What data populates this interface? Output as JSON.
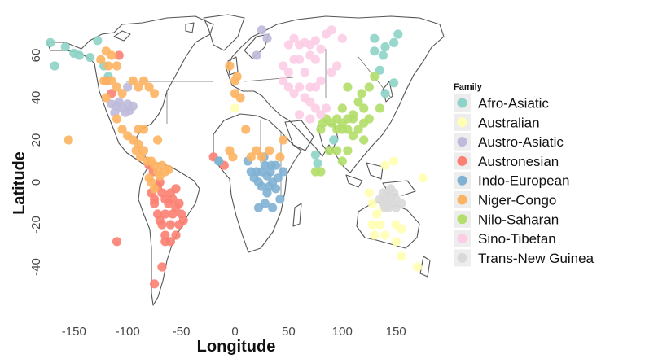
{
  "chart_data": {
    "type": "scatter",
    "title": "",
    "xlabel": "Longitude",
    "ylabel": "Latitude",
    "xlim": [
      -175,
      180
    ],
    "ylim": [
      -60,
      78
    ],
    "xticks": [
      -150,
      -100,
      -50,
      0,
      50,
      100,
      150
    ],
    "xtick_labels": [
      "-150",
      "-100",
      "-50",
      "0",
      "50",
      "100",
      "150"
    ],
    "yticks": [
      -40,
      -20,
      0,
      20,
      40,
      60
    ],
    "ytick_labels": [
      "-40",
      "-20",
      "0",
      "20",
      "40",
      "60"
    ],
    "grid": false,
    "background": "world map outline",
    "legend": {
      "title": "Family",
      "position": "right"
    },
    "series": [
      {
        "name": "Afro-Asiatic",
        "color": "#8dd3c7",
        "points": [
          [
            -172,
            66
          ],
          [
            -168,
            55
          ],
          [
            -158,
            64
          ],
          [
            -150,
            61
          ],
          [
            -145,
            60
          ],
          [
            -135,
            59
          ],
          [
            -128,
            67
          ],
          [
            -122,
            55
          ],
          [
            -118,
            50
          ],
          [
            130,
            68
          ],
          [
            130,
            62
          ],
          [
            135,
            53
          ],
          [
            138,
            60
          ],
          [
            140,
            64
          ],
          [
            148,
            66
          ],
          [
            152,
            70
          ],
          [
            148,
            47
          ],
          [
            140,
            42
          ],
          [
            -15,
            10
          ],
          [
            75,
            13
          ],
          [
            77,
            9
          ],
          [
            92,
            20
          ]
        ]
      },
      {
        "name": "Australian",
        "color": "#ffffb3",
        "points": [
          [
            0,
            35
          ],
          [
            125,
            -5
          ],
          [
            128,
            -10
          ],
          [
            132,
            -15
          ],
          [
            135,
            -20
          ],
          [
            138,
            -12
          ],
          [
            140,
            -25
          ],
          [
            130,
            -25
          ],
          [
            128,
            -20
          ],
          [
            145,
            -10
          ],
          [
            150,
            -20
          ],
          [
            150,
            -28
          ],
          [
            155,
            -22
          ],
          [
            175,
            2
          ],
          [
            148,
            10
          ],
          [
            140,
            8
          ],
          [
            170,
            -40
          ],
          [
            155,
            -35
          ]
        ]
      },
      {
        "name": "Austro-Asiatic",
        "color": "#bebada",
        "points": [
          [
            -108,
            38
          ],
          [
            -112,
            33
          ],
          [
            -105,
            35
          ],
          [
            -100,
            37
          ],
          [
            -95,
            36
          ],
          [
            -102,
            33
          ],
          [
            -98,
            34
          ],
          [
            -110,
            36
          ],
          [
            -115,
            37
          ],
          [
            -100,
            45
          ],
          [
            25,
            72
          ],
          [
            30,
            68
          ],
          [
            20,
            60
          ]
        ]
      },
      {
        "name": "Austronesian",
        "color": "#fb8072",
        "points": [
          [
            -108,
            60
          ],
          [
            -120,
            48
          ],
          [
            -115,
            42
          ],
          [
            -80,
            8
          ],
          [
            -76,
            5
          ],
          [
            -72,
            -2
          ],
          [
            -70,
            0
          ],
          [
            -68,
            -5
          ],
          [
            -65,
            -8
          ],
          [
            -62,
            -10
          ],
          [
            -60,
            -5
          ],
          [
            -58,
            -8
          ],
          [
            -55,
            -3
          ],
          [
            -52,
            -10
          ],
          [
            -50,
            -15
          ],
          [
            -48,
            -18
          ],
          [
            -52,
            -20
          ],
          [
            -55,
            -25
          ],
          [
            -60,
            -28
          ],
          [
            -65,
            -25
          ],
          [
            -68,
            -20
          ],
          [
            -70,
            -18
          ],
          [
            -72,
            -15
          ],
          [
            -75,
            -10
          ],
          [
            -78,
            -5
          ],
          [
            -75,
            -8
          ],
          [
            -65,
            -15
          ],
          [
            -60,
            -20
          ],
          [
            -58,
            -15
          ],
          [
            -55,
            -12
          ],
          [
            -65,
            -28
          ],
          [
            -68,
            -40
          ],
          [
            -75,
            -48
          ],
          [
            -110,
            -28
          ],
          [
            -20,
            12
          ],
          [
            -10,
            8
          ]
        ]
      },
      {
        "name": "Indo-European",
        "color": "#80b1d3",
        "points": [
          [
            12,
            10
          ],
          [
            15,
            5
          ],
          [
            18,
            2
          ],
          [
            22,
            0
          ],
          [
            25,
            5
          ],
          [
            28,
            8
          ],
          [
            30,
            3
          ],
          [
            32,
            -2
          ],
          [
            35,
            0
          ],
          [
            38,
            -3
          ],
          [
            40,
            2
          ],
          [
            34,
            8
          ],
          [
            30,
            -5
          ],
          [
            28,
            -10
          ],
          [
            35,
            -12
          ],
          [
            25,
            -2
          ],
          [
            20,
            5
          ],
          [
            27,
            12
          ],
          [
            38,
            8
          ],
          [
            42,
            -8
          ],
          [
            45,
            5
          ],
          [
            22,
            -12
          ],
          [
            -15,
            10
          ],
          [
            33,
            5
          ]
        ]
      },
      {
        "name": "Niger-Congo",
        "color": "#fdb462",
        "points": [
          [
            -155,
            20
          ],
          [
            -125,
            58
          ],
          [
            -120,
            62
          ],
          [
            -115,
            60
          ],
          [
            -110,
            55
          ],
          [
            -118,
            55
          ],
          [
            -122,
            48
          ],
          [
            -115,
            48
          ],
          [
            -110,
            45
          ],
          [
            -105,
            42
          ],
          [
            -95,
            48
          ],
          [
            -90,
            45
          ],
          [
            -85,
            48
          ],
          [
            -80,
            45
          ],
          [
            -75,
            42
          ],
          [
            -120,
            40
          ],
          [
            -110,
            30
          ],
          [
            -105,
            25
          ],
          [
            -100,
            22
          ],
          [
            -95,
            20
          ],
          [
            -90,
            18
          ],
          [
            -85,
            15
          ],
          [
            -92,
            15
          ],
          [
            -88,
            12
          ],
          [
            -82,
            10
          ],
          [
            -78,
            10
          ],
          [
            -75,
            8
          ],
          [
            -72,
            5
          ],
          [
            -70,
            3
          ],
          [
            -68,
            8
          ],
          [
            -65,
            5
          ],
          [
            -62,
            6
          ],
          [
            -80,
            2
          ],
          [
            -78,
            0
          ],
          [
            -75,
            -3
          ],
          [
            -72,
            20
          ],
          [
            -85,
            25
          ],
          [
            -90,
            25
          ],
          [
            5,
            40
          ],
          [
            0,
            42
          ],
          [
            2,
            50
          ],
          [
            -5,
            55
          ],
          [
            0,
            48
          ],
          [
            15,
            12
          ],
          [
            20,
            15
          ],
          [
            25,
            12
          ],
          [
            32,
            15
          ],
          [
            42,
            12
          ],
          [
            45,
            20
          ],
          [
            10,
            25
          ],
          [
            -5,
            15
          ],
          [
            -2,
            12
          ]
        ]
      },
      {
        "name": "Nilo-Saharan",
        "color": "#b3de69",
        "points": [
          [
            85,
            30
          ],
          [
            90,
            28
          ],
          [
            95,
            25
          ],
          [
            100,
            28
          ],
          [
            105,
            25
          ],
          [
            110,
            22
          ],
          [
            115,
            25
          ],
          [
            120,
            28
          ],
          [
            125,
            30
          ],
          [
            110,
            32
          ],
          [
            105,
            30
          ],
          [
            100,
            35
          ],
          [
            115,
            38
          ],
          [
            120,
            35
          ],
          [
            105,
            45
          ],
          [
            118,
            42
          ],
          [
            125,
            45
          ],
          [
            130,
            50
          ],
          [
            100,
            25
          ],
          [
            110,
            30
          ],
          [
            95,
            30
          ],
          [
            80,
            25
          ],
          [
            82,
            28
          ],
          [
            88,
            15
          ],
          [
            95,
            15
          ],
          [
            100,
            10
          ],
          [
            105,
            15
          ],
          [
            75,
            5
          ],
          [
            80,
            5
          ],
          [
            120,
            20
          ],
          [
            135,
            35
          ]
        ]
      },
      {
        "name": "Sino-Tibetan",
        "color": "#fccde5",
        "points": [
          [
            50,
            65
          ],
          [
            55,
            68
          ],
          [
            60,
            65
          ],
          [
            65,
            66
          ],
          [
            70,
            65
          ],
          [
            75,
            67
          ],
          [
            80,
            63
          ],
          [
            85,
            70
          ],
          [
            90,
            72
          ],
          [
            100,
            68
          ],
          [
            70,
            60
          ],
          [
            60,
            58
          ],
          [
            75,
            58
          ],
          [
            55,
            58
          ],
          [
            50,
            52
          ],
          [
            45,
            55
          ],
          [
            45,
            48
          ],
          [
            50,
            45
          ],
          [
            55,
            42
          ],
          [
            60,
            45
          ],
          [
            65,
            40
          ],
          [
            70,
            38
          ],
          [
            75,
            35
          ],
          [
            80,
            32
          ],
          [
            85,
            35
          ],
          [
            70,
            30
          ],
          [
            60,
            32
          ],
          [
            75,
            45
          ],
          [
            80,
            48
          ],
          [
            65,
            52
          ],
          [
            95,
            55
          ],
          [
            90,
            52
          ],
          [
            70,
            45
          ]
        ]
      },
      {
        "name": "Trans-New Guinea",
        "color": "#d9d9d9",
        "points": [
          [
            138,
            -5
          ],
          [
            140,
            -8
          ],
          [
            142,
            -5
          ],
          [
            145,
            -7
          ],
          [
            148,
            -5
          ],
          [
            150,
            -8
          ],
          [
            146,
            -10
          ],
          [
            142,
            -10
          ],
          [
            138,
            -10
          ],
          [
            135,
            -8
          ],
          [
            140,
            -12
          ],
          [
            150,
            -12
          ],
          [
            155,
            -10
          ],
          [
            145,
            -3
          ],
          [
            143,
            -12
          ]
        ]
      }
    ]
  }
}
